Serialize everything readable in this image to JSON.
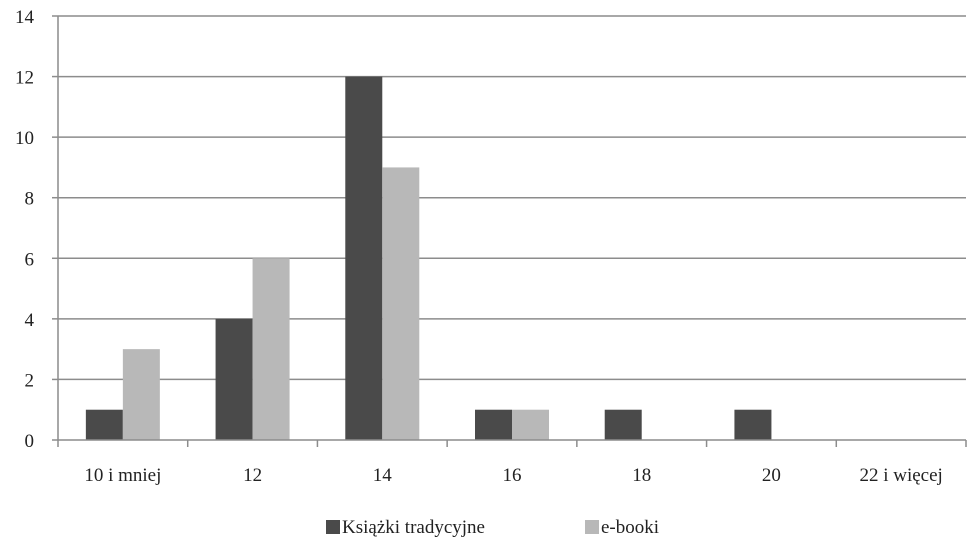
{
  "chart_data": {
    "type": "bar",
    "categories": [
      "10 i mniej",
      "12",
      "14",
      "16",
      "18",
      "20",
      "22 i więcej"
    ],
    "series": [
      {
        "name": "Książki tradycyjne",
        "values": [
          1,
          4,
          12,
          1,
          1,
          1,
          0
        ],
        "color": "#4a4a4a"
      },
      {
        "name": "e-booki",
        "values": [
          3,
          6,
          9,
          1,
          0,
          0,
          0
        ],
        "color": "#b8b8b8"
      }
    ],
    "yticks": [
      "0",
      "2",
      "4",
      "6",
      "8",
      "10",
      "12",
      "14"
    ],
    "ylim": [
      0,
      14
    ],
    "grid": true,
    "legend_position": "bottom-center",
    "title": "",
    "xlabel": "",
    "ylabel": ""
  }
}
